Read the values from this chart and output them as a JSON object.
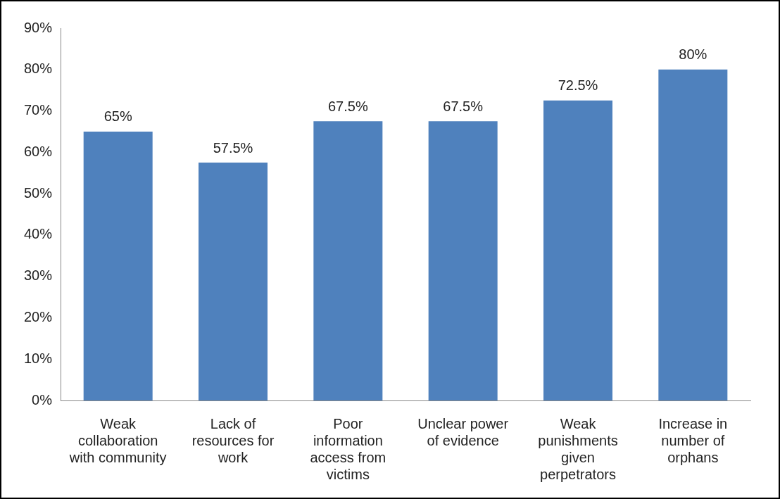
{
  "chart_data": {
    "type": "bar",
    "categories": [
      "Weak collaboration with community",
      "Lack of resources for work",
      "Poor information access from victims",
      "Unclear power of evidence",
      "Weak punishments given perpetrators",
      "Increase in number of orphans"
    ],
    "values": [
      65,
      57.5,
      67.5,
      67.5,
      72.5,
      80
    ],
    "value_labels": [
      "65%",
      "57.5%",
      "67.5%",
      "67.5%",
      "72.5%",
      "80%"
    ],
    "color": "#4f81bd",
    "ylim": [
      0,
      90
    ],
    "yticks": [
      {
        "value": 0,
        "label": "0%"
      },
      {
        "value": 10,
        "label": "10%"
      },
      {
        "value": 20,
        "label": "20%"
      },
      {
        "value": 30,
        "label": "30%"
      },
      {
        "value": 40,
        "label": "40%"
      },
      {
        "value": 50,
        "label": "50%"
      },
      {
        "value": 60,
        "label": "60%"
      },
      {
        "value": 70,
        "label": "70%"
      },
      {
        "value": 80,
        "label": "80%"
      },
      {
        "value": 90,
        "label": "90%"
      }
    ],
    "grid": false,
    "legend": false
  }
}
